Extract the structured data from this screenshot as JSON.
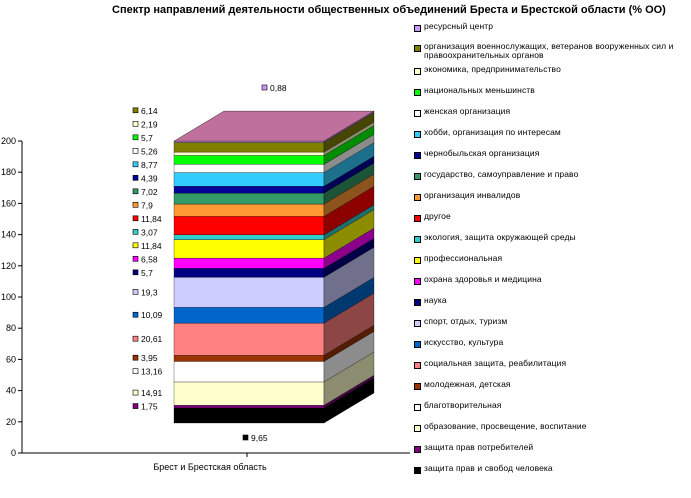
{
  "chart_data": {
    "type": "bar",
    "title": "Спектр направлений деятельности общественных объединений Бреста и Брестской области (% ОО)",
    "categories": [
      "Брест и Брестская область"
    ],
    "ylim": [
      0,
      200
    ],
    "yticks": [
      0,
      20,
      40,
      60,
      80,
      100,
      120,
      140,
      160,
      180,
      200
    ],
    "legend_position": "right",
    "series": [
      {
        "name": "защита прав и свобод человека",
        "value": 9.65,
        "label": "9,65",
        "color": "#000000"
      },
      {
        "name": "защита прав потребителей",
        "value": 1.75,
        "label": "1,75",
        "color": "#800080"
      },
      {
        "name": "образование, просвещение,  воспитание",
        "value": 14.91,
        "label": "14,91",
        "color": "#FFFFCC"
      },
      {
        "name": "благотворительная",
        "value": 13.16,
        "label": "13,16",
        "color": "#FFFFFF"
      },
      {
        "name": "молодежная, детская",
        "value": 3.95,
        "label": "3,95",
        "color": "#993300"
      },
      {
        "name": "социальная защита, реабилитация",
        "value": 20.61,
        "label": "20,61",
        "color": "#FF8080"
      },
      {
        "name": "искусство, культура",
        "value": 10.09,
        "label": "10,09",
        "color": "#0066CC"
      },
      {
        "name": "спорт, отдых, туризм",
        "value": 19.3,
        "label": "19,3",
        "color": "#CCCCFF"
      },
      {
        "name": "наука",
        "value": 5.7,
        "label": "5,7",
        "color": "#000080"
      },
      {
        "name": "охрана здоровья и медицина",
        "value": 6.58,
        "label": "6,58",
        "color": "#FF00FF"
      },
      {
        "name": "профессиональная",
        "value": 11.84,
        "label": "11,84",
        "color": "#FFFF00"
      },
      {
        "name": "экология, защита окружающей среды",
        "value": 3.07,
        "label": "3,07",
        "color": "#33CCCC"
      },
      {
        "name": "другое",
        "value": 11.84,
        "label": "11,84",
        "color": "#FF0000"
      },
      {
        "name": "организация инвалидов",
        "value": 7.9,
        "label": "7,9",
        "color": "#FF9933"
      },
      {
        "name": "государство, самоуправление и право",
        "value": 7.02,
        "label": "7,02",
        "color": "#339966"
      },
      {
        "name": "чернобыльская организация",
        "value": 4.39,
        "label": "4,39",
        "color": "#000099"
      },
      {
        "name": "хобби, организация по интересам",
        "value": 8.77,
        "label": "8,77",
        "color": "#33CCFF"
      },
      {
        "name": "женская организация",
        "value": 5.26,
        "label": "5,26",
        "color": "#FFFFFF"
      },
      {
        "name": "национальных меньшинств",
        "value": 5.7,
        "label": "5,7",
        "color": "#00FF00"
      },
      {
        "name": "экономика, предпринимательство",
        "value": 2.19,
        "label": "2,19",
        "color": "#FFFFCC"
      },
      {
        "name": "организация военнослужащих, ветеранов вооруженных сил и правоохранительных органов",
        "value": 6.14,
        "label": "6,14",
        "color": "#808000"
      },
      {
        "name": "ресурсный центр",
        "value": 0.88,
        "label": "0,88",
        "color": "#CC99FF"
      }
    ],
    "top_face_color": "#C0709C"
  }
}
